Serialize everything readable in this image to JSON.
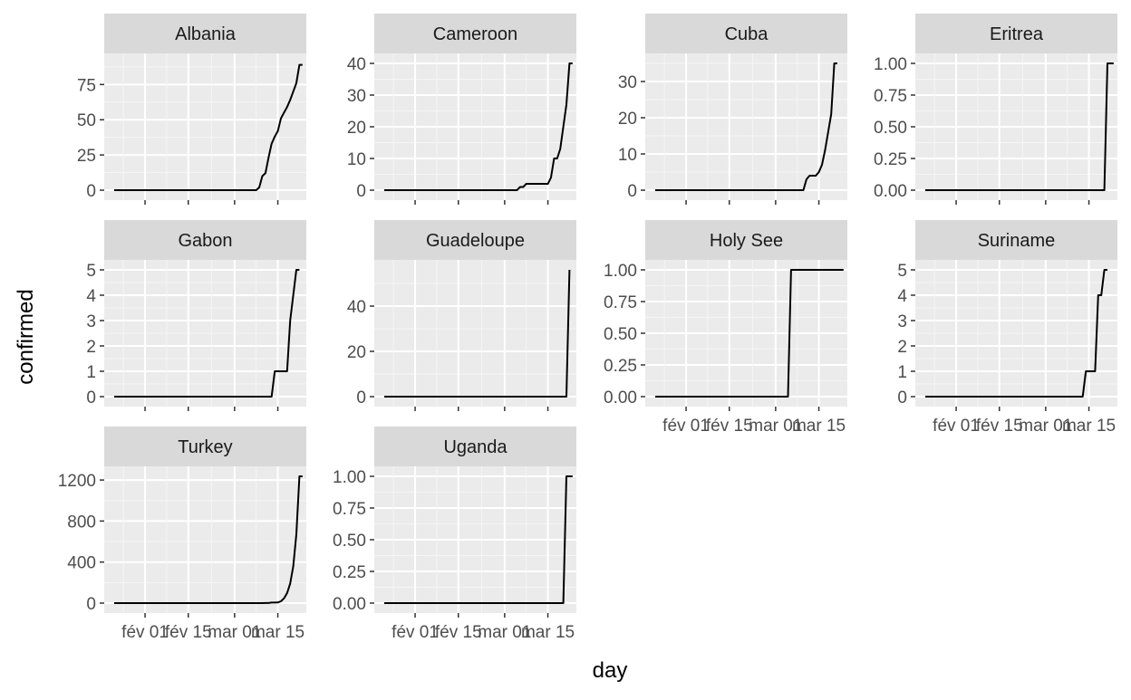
{
  "chart_data": {
    "type": "line",
    "xlabel": "day",
    "ylabel": "confirmed",
    "x_ticks": [
      {
        "date": "2020-02-01",
        "label": "fév 01"
      },
      {
        "date": "2020-02-15",
        "label": "fév 15"
      },
      {
        "date": "2020-03-01",
        "label": "mar 01"
      },
      {
        "date": "2020-03-15",
        "label": "mar 15"
      }
    ],
    "xlim": [
      "2020-01-22",
      "2020-03-21"
    ],
    "line_color": "#000000",
    "panels": [
      {
        "title": "Albania",
        "ylim": [
          0,
          90
        ],
        "y_ticks": [
          {
            "v": 0,
            "label": "0"
          },
          {
            "v": 25,
            "label": "25"
          },
          {
            "v": 50,
            "label": "50"
          },
          {
            "v": 75,
            "label": "75"
          }
        ],
        "points": [
          [
            "2020-01-22",
            0
          ],
          [
            "2020-03-08",
            0
          ],
          [
            "2020-03-09",
            2
          ],
          [
            "2020-03-10",
            10
          ],
          [
            "2020-03-11",
            12
          ],
          [
            "2020-03-12",
            23
          ],
          [
            "2020-03-13",
            33
          ],
          [
            "2020-03-14",
            38
          ],
          [
            "2020-03-15",
            42
          ],
          [
            "2020-03-16",
            51
          ],
          [
            "2020-03-17",
            55
          ],
          [
            "2020-03-18",
            59
          ],
          [
            "2020-03-19",
            64
          ],
          [
            "2020-03-20",
            70
          ],
          [
            "2020-03-21",
            76
          ],
          [
            "2020-03-22",
            89
          ],
          [
            "2020-03-23",
            89
          ]
        ]
      },
      {
        "title": "Cameroon",
        "ylim": [
          0,
          40
        ],
        "y_ticks": [
          {
            "v": 0,
            "label": "0"
          },
          {
            "v": 10,
            "label": "10"
          },
          {
            "v": 20,
            "label": "20"
          },
          {
            "v": 30,
            "label": "30"
          },
          {
            "v": 40,
            "label": "40"
          }
        ],
        "points": [
          [
            "2020-01-22",
            0
          ],
          [
            "2020-03-05",
            0
          ],
          [
            "2020-03-06",
            1
          ],
          [
            "2020-03-07",
            1
          ],
          [
            "2020-03-08",
            2
          ],
          [
            "2020-03-15",
            2
          ],
          [
            "2020-03-16",
            4
          ],
          [
            "2020-03-17",
            10
          ],
          [
            "2020-03-18",
            10
          ],
          [
            "2020-03-19",
            13
          ],
          [
            "2020-03-20",
            20
          ],
          [
            "2020-03-21",
            27
          ],
          [
            "2020-03-22",
            40
          ],
          [
            "2020-03-23",
            40
          ]
        ]
      },
      {
        "title": "Cuba",
        "ylim": [
          0,
          35
        ],
        "y_ticks": [
          {
            "v": 0,
            "label": "0"
          },
          {
            "v": 10,
            "label": "10"
          },
          {
            "v": 20,
            "label": "20"
          },
          {
            "v": 30,
            "label": "30"
          }
        ],
        "points": [
          [
            "2020-01-22",
            0
          ],
          [
            "2020-03-10",
            0
          ],
          [
            "2020-03-11",
            3
          ],
          [
            "2020-03-12",
            4
          ],
          [
            "2020-03-13",
            4
          ],
          [
            "2020-03-14",
            4
          ],
          [
            "2020-03-15",
            5
          ],
          [
            "2020-03-16",
            7
          ],
          [
            "2020-03-17",
            11
          ],
          [
            "2020-03-18",
            16
          ],
          [
            "2020-03-19",
            21
          ],
          [
            "2020-03-20",
            35
          ],
          [
            "2020-03-21",
            35
          ]
        ]
      },
      {
        "title": "Eritrea",
        "ylim": [
          0,
          1
        ],
        "y_ticks": [
          {
            "v": 0,
            "label": "0.00"
          },
          {
            "v": 0.25,
            "label": "0.25"
          },
          {
            "v": 0.5,
            "label": "0.50"
          },
          {
            "v": 0.75,
            "label": "0.75"
          },
          {
            "v": 1,
            "label": "1.00"
          }
        ],
        "points": [
          [
            "2020-01-22",
            0
          ],
          [
            "2020-03-20",
            0
          ],
          [
            "2020-03-21",
            1
          ],
          [
            "2020-03-23",
            1
          ]
        ]
      },
      {
        "title": "Gabon",
        "ylim": [
          0,
          5
        ],
        "y_ticks": [
          {
            "v": 0,
            "label": "0"
          },
          {
            "v": 1,
            "label": "1"
          },
          {
            "v": 2,
            "label": "2"
          },
          {
            "v": 3,
            "label": "3"
          },
          {
            "v": 4,
            "label": "4"
          },
          {
            "v": 5,
            "label": "5"
          }
        ],
        "points": [
          [
            "2020-01-22",
            0
          ],
          [
            "2020-03-13",
            0
          ],
          [
            "2020-03-14",
            1
          ],
          [
            "2020-03-18",
            1
          ],
          [
            "2020-03-19",
            3
          ],
          [
            "2020-03-20",
            4
          ],
          [
            "2020-03-21",
            5
          ],
          [
            "2020-03-22",
            5
          ]
        ]
      },
      {
        "title": "Guadeloupe",
        "ylim": [
          0,
          56
        ],
        "y_ticks": [
          {
            "v": 0,
            "label": "0"
          },
          {
            "v": 20,
            "label": "20"
          },
          {
            "v": 40,
            "label": "40"
          }
        ],
        "points": [
          [
            "2020-01-22",
            0
          ],
          [
            "2020-03-21",
            0
          ],
          [
            "2020-03-22",
            56
          ]
        ]
      },
      {
        "title": "Holy See",
        "ylim": [
          0,
          1
        ],
        "y_ticks": [
          {
            "v": 0,
            "label": "0.00"
          },
          {
            "v": 0.25,
            "label": "0.25"
          },
          {
            "v": 0.5,
            "label": "0.50"
          },
          {
            "v": 0.75,
            "label": "0.75"
          },
          {
            "v": 1,
            "label": "1.00"
          }
        ],
        "points": [
          [
            "2020-01-22",
            0
          ],
          [
            "2020-03-05",
            0
          ],
          [
            "2020-03-06",
            1
          ],
          [
            "2020-03-23",
            1
          ]
        ]
      },
      {
        "title": "Suriname",
        "ylim": [
          0,
          5
        ],
        "y_ticks": [
          {
            "v": 0,
            "label": "0"
          },
          {
            "v": 1,
            "label": "1"
          },
          {
            "v": 2,
            "label": "2"
          },
          {
            "v": 3,
            "label": "3"
          },
          {
            "v": 4,
            "label": "4"
          },
          {
            "v": 5,
            "label": "5"
          }
        ],
        "points": [
          [
            "2020-01-22",
            0
          ],
          [
            "2020-03-13",
            0
          ],
          [
            "2020-03-14",
            1
          ],
          [
            "2020-03-17",
            1
          ],
          [
            "2020-03-18",
            4
          ],
          [
            "2020-03-19",
            4
          ],
          [
            "2020-03-20",
            5
          ],
          [
            "2020-03-21",
            5
          ]
        ]
      },
      {
        "title": "Turkey",
        "ylim": [
          0,
          1236
        ],
        "y_ticks": [
          {
            "v": 0,
            "label": "0"
          },
          {
            "v": 400,
            "label": "400"
          },
          {
            "v": 800,
            "label": "800"
          },
          {
            "v": 1200,
            "label": "1200"
          }
        ],
        "points": [
          [
            "2020-01-22",
            0
          ],
          [
            "2020-03-10",
            0
          ],
          [
            "2020-03-11",
            1
          ],
          [
            "2020-03-12",
            1
          ],
          [
            "2020-03-13",
            5
          ],
          [
            "2020-03-14",
            5
          ],
          [
            "2020-03-15",
            6
          ],
          [
            "2020-03-16",
            18
          ],
          [
            "2020-03-17",
            47
          ],
          [
            "2020-03-18",
            98
          ],
          [
            "2020-03-19",
            191
          ],
          [
            "2020-03-20",
            359
          ],
          [
            "2020-03-21",
            670
          ],
          [
            "2020-03-22",
            1236
          ],
          [
            "2020-03-23",
            1236
          ]
        ]
      },
      {
        "title": "Uganda",
        "ylim": [
          0,
          1
        ],
        "y_ticks": [
          {
            "v": 0,
            "label": "0.00"
          },
          {
            "v": 0.25,
            "label": "0.25"
          },
          {
            "v": 0.5,
            "label": "0.50"
          },
          {
            "v": 0.75,
            "label": "0.75"
          },
          {
            "v": 1,
            "label": "1.00"
          }
        ],
        "points": [
          [
            "2020-01-22",
            0
          ],
          [
            "2020-03-20",
            0
          ],
          [
            "2020-03-21",
            1
          ],
          [
            "2020-03-23",
            1
          ]
        ]
      }
    ]
  }
}
